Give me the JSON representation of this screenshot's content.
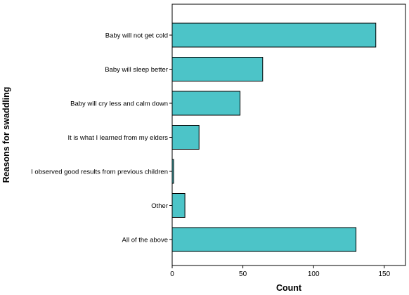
{
  "chart_data": {
    "type": "bar",
    "orientation": "horizontal",
    "categories": [
      "Baby will not get cold",
      "Baby will sleep better",
      "Baby will cry less and calm down",
      "It is what I learned from my elders",
      "I observed good results from previous children",
      "Other",
      "All of the above"
    ],
    "values": [
      144,
      64,
      48,
      19,
      1,
      9,
      130
    ],
    "xlabel": "Count",
    "ylabel": "Reasons for swaddling",
    "xlim": [
      0,
      165
    ],
    "xticks": [
      0,
      50,
      100,
      150
    ],
    "grid": false,
    "bar_color": "#4cc4c8"
  }
}
